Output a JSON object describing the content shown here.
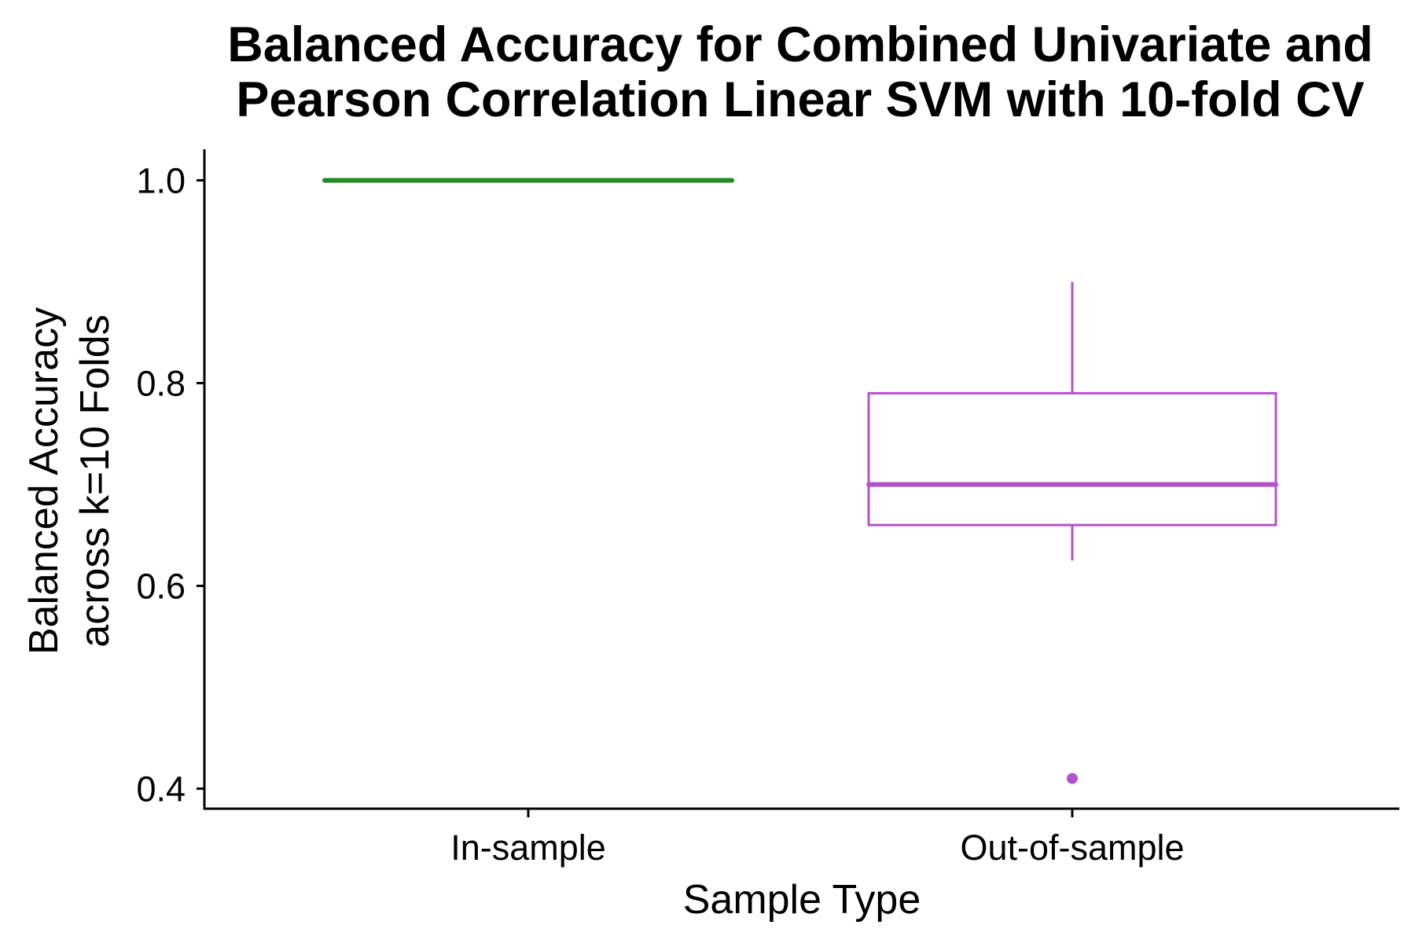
{
  "chart_data": {
    "type": "box",
    "title": [
      "Balanced Accuracy for Combined Univariate and",
      "Pearson Correlation Linear SVM with 10-fold CV"
    ],
    "xlabel": "Sample Type",
    "ylabel": [
      "Balanced Accuracy",
      "across k=10 Folds"
    ],
    "categories": [
      "In-sample",
      "Out-of-sample"
    ],
    "yticks": [
      "0.4",
      "0.6",
      "0.8",
      "1.0"
    ],
    "ylim": [
      0.38,
      1.03
    ],
    "grid": false,
    "legend": "none",
    "series": [
      {
        "category": "In-sample",
        "color": "#228B22",
        "min": 1.0,
        "q1": 1.0,
        "median": 1.0,
        "q3": 1.0,
        "max": 1.0,
        "outliers": []
      },
      {
        "category": "Out-of-sample",
        "color": "#B452CD",
        "min": 0.625,
        "q1": 0.66,
        "median": 0.7,
        "q3": 0.79,
        "max": 0.9,
        "outliers": [
          0.41
        ]
      }
    ]
  }
}
